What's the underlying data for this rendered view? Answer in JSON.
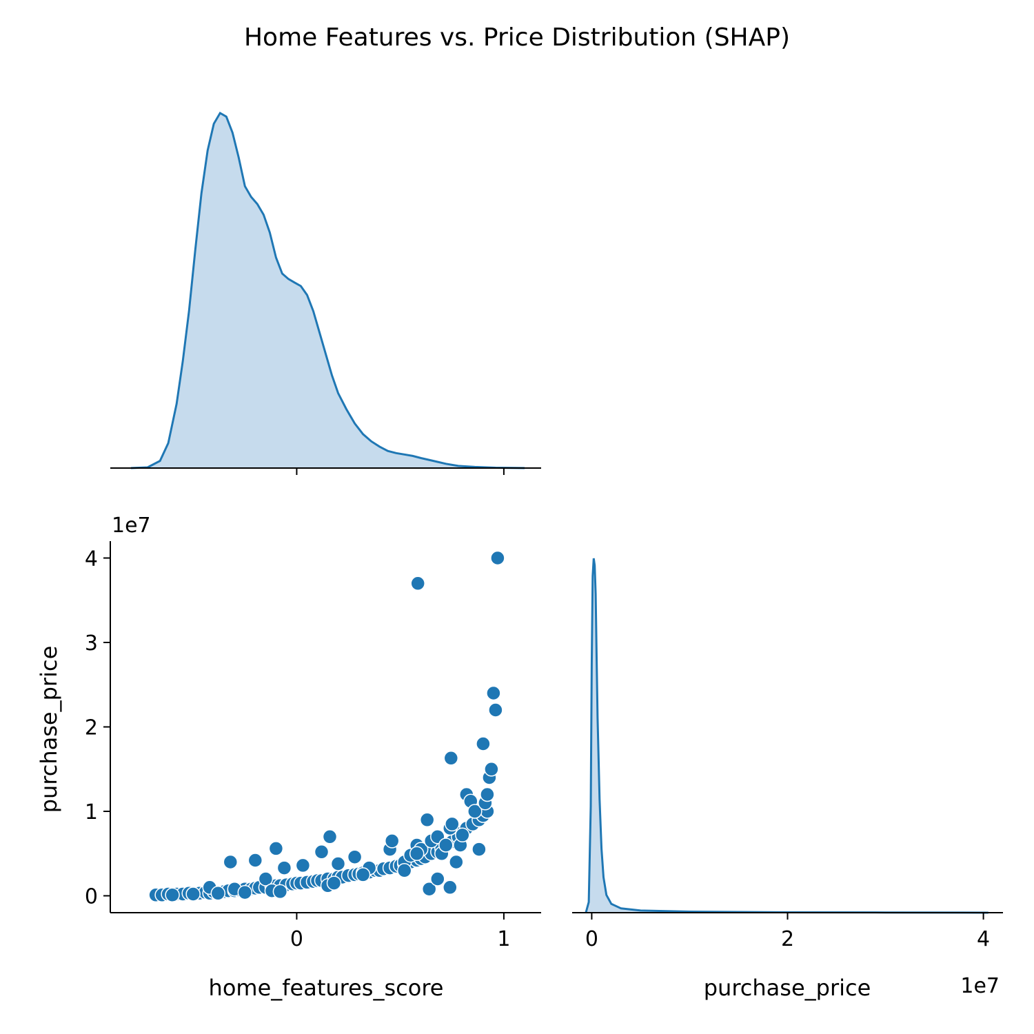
{
  "chart_data": {
    "type": "pairplot",
    "title": "Home Features vs. Price Distribution (SHAP)",
    "color": "#1f77b4",
    "fill_color": "#c6dbed",
    "variables": [
      "home_features_score",
      "purchase_price"
    ],
    "panels": [
      {
        "id": "kde-home-features-score",
        "type": "area",
        "x_variable": "home_features_score",
        "xlim": [
          -0.9,
          1.18
        ],
        "x_ticks": [
          0,
          1
        ],
        "x_tick_labels": [
          "0",
          "1"
        ],
        "density_curve": {
          "x": [
            -0.8,
            -0.72,
            -0.66,
            -0.62,
            -0.58,
            -0.55,
            -0.52,
            -0.49,
            -0.46,
            -0.43,
            -0.4,
            -0.37,
            -0.34,
            -0.31,
            -0.28,
            -0.25,
            -0.22,
            -0.19,
            -0.16,
            -0.13,
            -0.1,
            -0.07,
            -0.04,
            -0.01,
            0.02,
            0.05,
            0.08,
            0.11,
            0.14,
            0.17,
            0.2,
            0.24,
            0.28,
            0.32,
            0.36,
            0.4,
            0.44,
            0.48,
            0.52,
            0.56,
            0.6,
            0.66,
            0.72,
            0.78,
            0.86,
            0.96,
            1.1
          ],
          "y": [
            0.0,
            0.002,
            0.02,
            0.07,
            0.18,
            0.3,
            0.44,
            0.61,
            0.77,
            0.89,
            0.965,
            0.995,
            0.985,
            0.94,
            0.87,
            0.79,
            0.76,
            0.74,
            0.71,
            0.66,
            0.59,
            0.545,
            0.53,
            0.52,
            0.51,
            0.485,
            0.44,
            0.38,
            0.32,
            0.26,
            0.21,
            0.165,
            0.125,
            0.095,
            0.075,
            0.06,
            0.048,
            0.042,
            0.038,
            0.034,
            0.028,
            0.02,
            0.012,
            0.006,
            0.003,
            0.001,
            0.0
          ]
        }
      },
      {
        "id": "scatter-features-vs-price",
        "type": "scatter",
        "x_variable": "home_features_score",
        "y_variable": "purchase_price",
        "xlabel": "home_features_score",
        "ylabel": "purchase_price",
        "xlim": [
          -0.9,
          1.18
        ],
        "ylim": [
          -0.2,
          4.2
        ],
        "y_scale_label": "1e7",
        "x_ticks": [
          0,
          1
        ],
        "x_tick_labels": [
          "0",
          "1"
        ],
        "y_ticks": [
          0,
          1,
          2,
          3,
          4
        ],
        "y_tick_labels": [
          "0",
          "1",
          "2",
          "3",
          "4"
        ],
        "points": {
          "x": [
            -0.68,
            -0.65,
            -0.62,
            -0.6,
            -0.58,
            -0.55,
            -0.52,
            -0.5,
            -0.47,
            -0.44,
            -0.42,
            -0.4,
            -0.38,
            -0.35,
            -0.33,
            -0.3,
            -0.28,
            -0.25,
            -0.22,
            -0.2,
            -0.18,
            -0.15,
            -0.12,
            -0.1,
            -0.08,
            -0.05,
            -0.02,
            0.0,
            0.02,
            0.05,
            0.08,
            0.1,
            0.12,
            0.15,
            0.18,
            0.2,
            0.22,
            0.25,
            0.28,
            0.3,
            0.32,
            0.35,
            0.38,
            0.4,
            0.42,
            0.45,
            0.48,
            0.5,
            0.52,
            0.55,
            0.58,
            0.6,
            0.62,
            0.65,
            0.68,
            0.7,
            0.72,
            0.75,
            0.78,
            0.8,
            0.82,
            0.85,
            0.88,
            0.9,
            0.92,
            -0.42,
            -0.32,
            -0.2,
            -0.15,
            -0.1,
            -0.06,
            0.03,
            0.12,
            0.16,
            0.2,
            0.28,
            0.35,
            0.45,
            0.46,
            0.52,
            0.55,
            0.58,
            0.6,
            0.63,
            0.65,
            0.68,
            0.7,
            0.72,
            0.74,
            0.75,
            0.77,
            0.79,
            0.8,
            0.82,
            0.84,
            0.86,
            0.88,
            0.9,
            0.91,
            0.92,
            0.93,
            0.94,
            0.95,
            0.96,
            0.97,
            0.585,
            0.745,
            -0.3,
            -0.12,
            0.15,
            -0.6,
            -0.5,
            -0.38,
            -0.25,
            -0.08,
            0.18,
            0.32,
            0.52,
            0.58,
            0.64,
            0.68,
            0.74
          ],
          "y": [
            0.01,
            0.01,
            0.02,
            0.01,
            0.02,
            0.02,
            0.03,
            0.02,
            0.03,
            0.04,
            0.03,
            0.05,
            0.04,
            0.05,
            0.06,
            0.06,
            0.07,
            0.08,
            0.08,
            0.09,
            0.1,
            0.1,
            0.11,
            0.12,
            0.12,
            0.13,
            0.14,
            0.15,
            0.15,
            0.16,
            0.17,
            0.18,
            0.18,
            0.2,
            0.2,
            0.22,
            0.22,
            0.24,
            0.25,
            0.26,
            0.27,
            0.28,
            0.3,
            0.3,
            0.32,
            0.33,
            0.35,
            0.36,
            0.38,
            0.4,
            0.42,
            0.44,
            0.46,
            0.5,
            0.52,
            0.56,
            0.6,
            0.64,
            0.7,
            0.75,
            0.8,
            0.85,
            0.9,
            0.95,
            1.0,
            0.1,
            0.4,
            0.42,
            0.2,
            0.56,
            0.33,
            0.36,
            0.52,
            0.7,
            0.38,
            0.46,
            0.33,
            0.55,
            0.65,
            0.4,
            0.48,
            0.6,
            0.55,
            0.9,
            0.65,
            0.7,
            0.5,
            0.6,
            0.8,
            0.85,
            0.4,
            0.6,
            0.72,
            1.2,
            1.12,
            1.0,
            0.55,
            1.8,
            1.1,
            1.2,
            1.4,
            1.5,
            2.4,
            2.2,
            4.0,
            3.7,
            1.63,
            0.08,
            0.06,
            0.12,
            0.01,
            0.02,
            0.03,
            0.04,
            0.05,
            0.15,
            0.25,
            0.3,
            0.5,
            0.08,
            0.2,
            0.1
          ]
        }
      },
      {
        "id": "kde-purchase-price",
        "type": "area",
        "x_variable": "purchase_price",
        "xlabel": "purchase_price",
        "xlim": [
          -0.2,
          4.2
        ],
        "x_scale_label": "1e7",
        "x_ticks": [
          0,
          2,
          4
        ],
        "x_tick_labels": [
          "0",
          "2",
          "4"
        ],
        "density_curve": {
          "x": [
            -0.06,
            -0.03,
            -0.01,
            0.0,
            0.01,
            0.02,
            0.03,
            0.04,
            0.05,
            0.06,
            0.08,
            0.1,
            0.12,
            0.15,
            0.2,
            0.3,
            0.5,
            1.0,
            2.0,
            3.0,
            4.05
          ],
          "y": [
            0.0,
            0.03,
            0.3,
            0.7,
            0.95,
            1.0,
            0.98,
            0.9,
            0.72,
            0.55,
            0.32,
            0.18,
            0.1,
            0.05,
            0.025,
            0.012,
            0.006,
            0.003,
            0.001,
            0.0005,
            0.0
          ]
        }
      }
    ]
  }
}
